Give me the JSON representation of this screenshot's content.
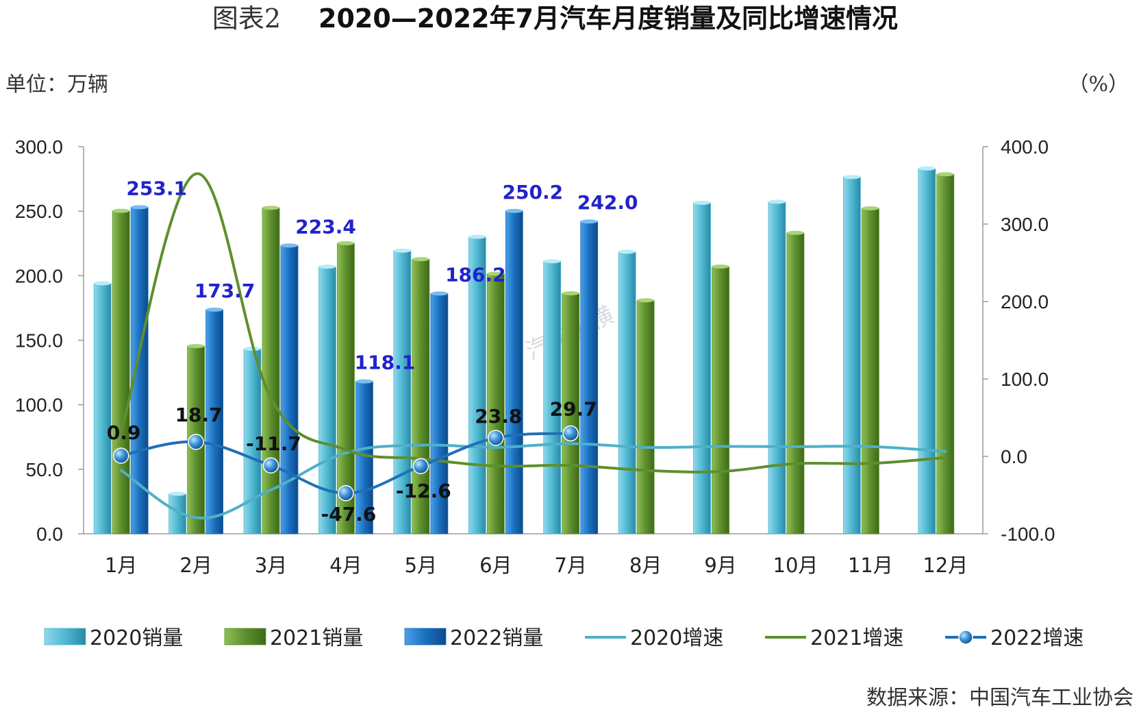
{
  "title": {
    "prefix": "图表2",
    "main": "2020—2022年7月汽车月度销量及同比增速情况"
  },
  "unit_left": "单位：万辆",
  "unit_right": "（%）",
  "source": "数据来源：中国汽车工业协会",
  "watermark": "汽车纵横",
  "colors": {
    "s2020_bar": "#4fb8d2",
    "s2021_bar": "#5e8f2e",
    "s2022_bar": "#1a6fbf",
    "g2020": "#4fb0c8",
    "g2021": "#5e8f2e",
    "g2022": "#1f6fb5"
  },
  "chart_data": {
    "type": "bar",
    "categories": [
      "1月",
      "2月",
      "3月",
      "4月",
      "5月",
      "6月",
      "7月",
      "8月",
      "9月",
      "10月",
      "11月",
      "12月"
    ],
    "bar_series": [
      {
        "name": "2020销量",
        "values": [
          194.1,
          31.0,
          143.4,
          207.0,
          219.4,
          230.1,
          211.2,
          218.6,
          256.5,
          257.3,
          276.5,
          283.1
        ]
      },
      {
        "name": "2021销量",
        "values": [
          250.3,
          145.5,
          252.6,
          225.2,
          212.8,
          201.5,
          186.4,
          180.9,
          207.1,
          233.2,
          252.2,
          278.6
        ]
      },
      {
        "name": "2022销量",
        "values": [
          253.1,
          173.7,
          223.4,
          118.1,
          186.2,
          250.2,
          242.0,
          null,
          null,
          null,
          null,
          null
        ]
      }
    ],
    "line_series": [
      {
        "name": "2020增速",
        "values": [
          -18.0,
          -79.1,
          -43.3,
          4.4,
          14.5,
          11.6,
          16.4,
          11.6,
          12.8,
          12.5,
          12.6,
          6.4
        ]
      },
      {
        "name": "2021增速",
        "values": [
          29.5,
          364.9,
          75.2,
          8.6,
          -3.1,
          -12.4,
          -11.7,
          -18.1,
          -19.6,
          -9.4,
          -9.1,
          -1.6
        ]
      },
      {
        "name": "2022增速",
        "values": [
          0.9,
          18.7,
          -11.7,
          -47.6,
          -12.6,
          23.8,
          29.7,
          null,
          null,
          null,
          null,
          null
        ]
      }
    ],
    "bar_labels": [
      "253.1",
      "173.7",
      "223.4",
      "118.1",
      "186.2",
      "250.2",
      "242.0"
    ],
    "line_labels": [
      "0.9",
      "18.7",
      "-11.7",
      "-47.6",
      "-12.6",
      "23.8",
      "29.7"
    ],
    "y_left": {
      "range": [
        0,
        300
      ],
      "ticks": [
        "0.0",
        "50.0",
        "100.0",
        "150.0",
        "200.0",
        "250.0",
        "300.0"
      ]
    },
    "y_right": {
      "range": [
        -100,
        400
      ],
      "ticks": [
        "-100.0",
        "0.0",
        "100.0",
        "200.0",
        "300.0",
        "400.0"
      ]
    },
    "legend": [
      "2020销量",
      "2021销量",
      "2022销量",
      "2020增速",
      "2021增速",
      "2022增速"
    ],
    "legend_position": "bottom",
    "grid": false
  }
}
